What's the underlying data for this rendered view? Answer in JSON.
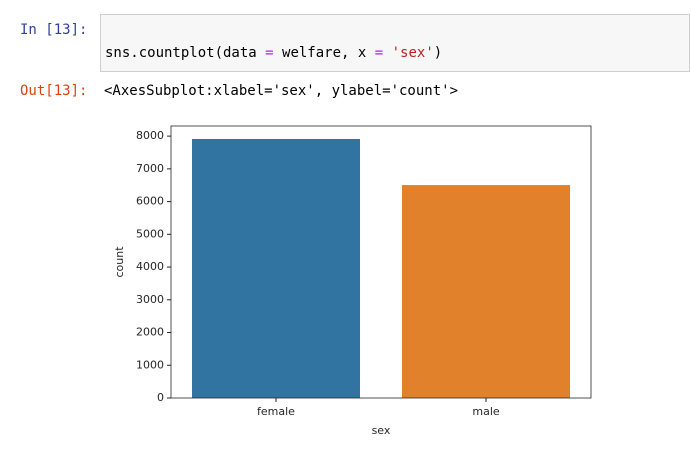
{
  "input_cell": {
    "prompt": "In [13]:",
    "code_tokens": [
      "sns.countplot(data ",
      "=",
      " welfare, x ",
      "=",
      " ",
      "'sex'",
      ")"
    ]
  },
  "output_cell": {
    "prompt": "Out[13]:",
    "text": "<AxesSubplot:xlabel='sex', ylabel='count'>"
  },
  "chart_data": {
    "type": "bar",
    "x_label": "sex",
    "y_label": "count",
    "categories": [
      "female",
      "male"
    ],
    "values": [
      7913,
      6505
    ],
    "colors": [
      "#3274a1",
      "#e1812c"
    ],
    "ylim": [
      0,
      8309
    ],
    "yticks": [
      0,
      1000,
      2000,
      3000,
      4000,
      5000,
      6000,
      7000,
      8000
    ],
    "grid": false
  }
}
